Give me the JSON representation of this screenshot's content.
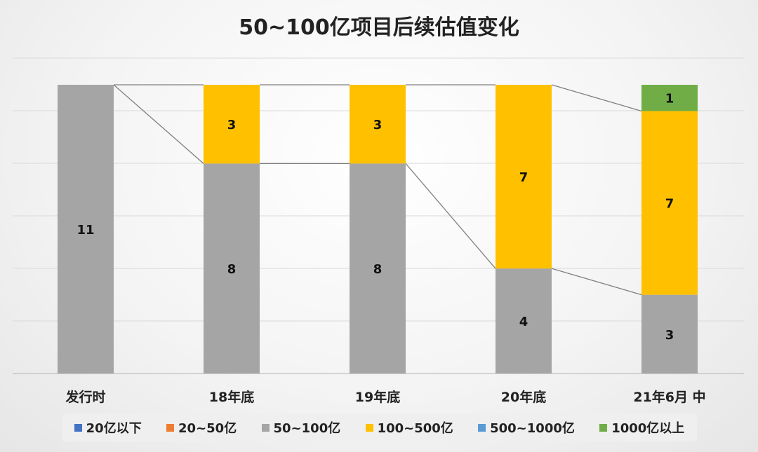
{
  "chart_data": {
    "type": "bar",
    "stacked": true,
    "title": "50~100亿项目后续估值变化",
    "categories": [
      "发行时",
      "18年底",
      "19年底",
      "20年底",
      "21年6月 中"
    ],
    "series": [
      {
        "name": "20亿以下",
        "color": "#4472C4",
        "values": [
          0,
          0,
          0,
          0,
          0
        ]
      },
      {
        "name": "20~50亿",
        "color": "#ED7D31",
        "values": [
          0,
          0,
          0,
          0,
          0
        ]
      },
      {
        "name": "50~100亿",
        "color": "#A5A5A5",
        "values": [
          11,
          8,
          8,
          4,
          3
        ]
      },
      {
        "name": "100~500亿",
        "color": "#FFC000",
        "values": [
          0,
          3,
          3,
          7,
          7
        ]
      },
      {
        "name": "500~1000亿",
        "color": "#5B9BD5",
        "values": [
          0,
          0,
          0,
          0,
          0
        ]
      },
      {
        "name": "1000亿以上",
        "color": "#70AD47",
        "values": [
          0,
          0,
          0,
          0,
          1
        ]
      }
    ],
    "ylim": [
      0,
      11
    ],
    "grid": true,
    "connector_lines": true,
    "legend_position": "bottom"
  }
}
